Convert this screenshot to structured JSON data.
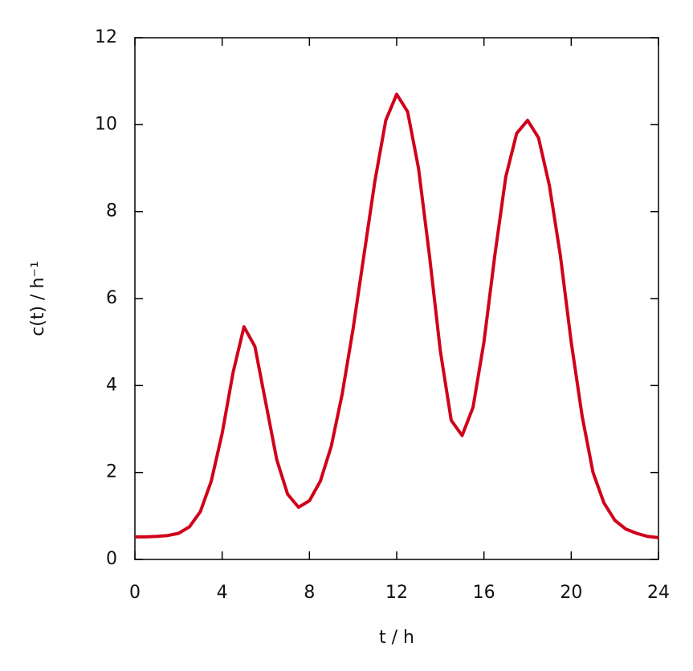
{
  "chart_data": {
    "type": "line",
    "x_label": "t / h",
    "y_label": "c(t) / h⁻¹",
    "x": [
      0,
      0.5,
      1,
      1.5,
      2,
      2.5,
      3,
      3.5,
      4,
      4.5,
      5,
      5.5,
      6,
      6.5,
      7,
      7.5,
      8,
      8.5,
      9,
      9.5,
      10,
      10.5,
      11,
      11.5,
      12,
      12.5,
      13,
      13.5,
      14,
      14.5,
      15,
      15.5,
      16,
      16.5,
      17,
      17.5,
      18,
      18.5,
      19,
      19.5,
      20,
      20.5,
      21,
      21.5,
      22,
      22.5,
      23,
      23.5,
      24
    ],
    "series": [
      {
        "color": "#d0021b",
        "values": [
          0.52,
          0.52,
          0.53,
          0.55,
          0.6,
          0.75,
          1.1,
          1.8,
          2.9,
          4.3,
          5.35,
          4.9,
          3.6,
          2.3,
          1.5,
          1.2,
          1.35,
          1.8,
          2.6,
          3.8,
          5.3,
          7.0,
          8.7,
          10.1,
          10.7,
          10.3,
          9.0,
          7.0,
          4.8,
          3.2,
          2.85,
          3.5,
          5.0,
          7.0,
          8.8,
          9.8,
          10.1,
          9.7,
          8.6,
          7.0,
          5.0,
          3.3,
          2.0,
          1.3,
          0.9,
          0.7,
          0.6,
          0.53,
          0.5
        ]
      }
    ],
    "xlim": [
      0,
      24
    ],
    "xticks": [
      0,
      4,
      8,
      12,
      16,
      20,
      24
    ],
    "ylim": [
      0,
      12
    ],
    "yticks": [
      0,
      2,
      4,
      6,
      8,
      10,
      12
    ]
  }
}
